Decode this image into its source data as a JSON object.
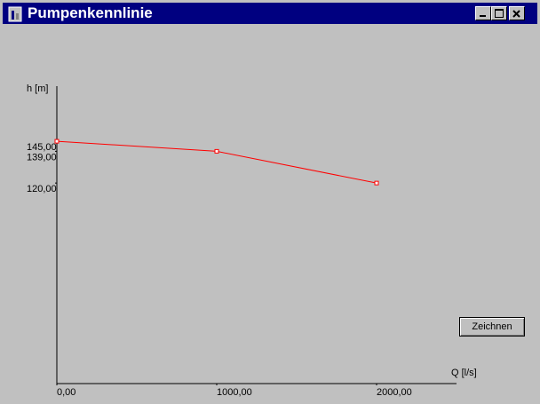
{
  "window": {
    "title": "Pumpenkennlinie",
    "button": "Zeichnen"
  },
  "chart_data": {
    "type": "line",
    "x_label": "Q [l/s]",
    "y_label": "h [m]",
    "x": [
      0,
      1000,
      2000
    ],
    "series": [
      {
        "color": "#ff0000",
        "values": [
          145,
          139,
          120
        ]
      }
    ],
    "xlim": [
      0,
      2500
    ],
    "ylim": [
      0,
      178
    ],
    "xticks": [
      {
        "value": 0,
        "label": "0,00"
      },
      {
        "value": 1000,
        "label": "1000,00"
      },
      {
        "value": 2000,
        "label": "2000,00"
      }
    ],
    "yticks": [
      {
        "value": 145,
        "label": "145,00"
      },
      {
        "value": 139,
        "label": "139,00"
      },
      {
        "value": 120,
        "label": "120,00"
      }
    ]
  }
}
